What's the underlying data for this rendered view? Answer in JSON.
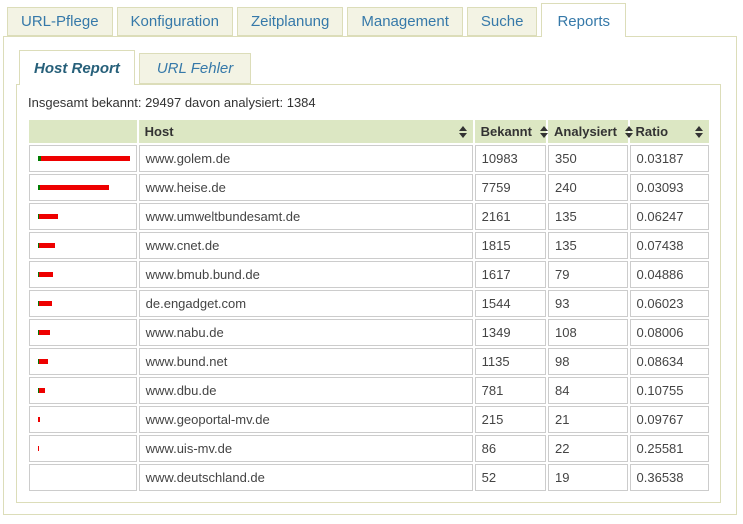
{
  "main_tabs": {
    "items": [
      {
        "label": "URL-Pflege",
        "active": false
      },
      {
        "label": "Konfiguration",
        "active": false
      },
      {
        "label": "Zeitplanung",
        "active": false
      },
      {
        "label": "Management",
        "active": false
      },
      {
        "label": "Suche",
        "active": false
      },
      {
        "label": "Reports",
        "active": true
      }
    ]
  },
  "sub_tabs": {
    "items": [
      {
        "label": "Host Report",
        "active": true
      },
      {
        "label": "URL Fehler",
        "active": false
      }
    ]
  },
  "summary_text": "Insgesamt bekannt: 29497 davon analysiert: 1384",
  "table": {
    "headers": {
      "bar": "",
      "host": "Host",
      "bekannt": "Bekannt",
      "analysiert": "Analysiert",
      "ratio": "Ratio"
    },
    "sort_icon": "unsorted-arrows",
    "rows": [
      {
        "host": "www.golem.de",
        "bekannt": 10983,
        "analysiert": 350,
        "ratio": "0.03187"
      },
      {
        "host": "www.heise.de",
        "bekannt": 7759,
        "analysiert": 240,
        "ratio": "0.03093"
      },
      {
        "host": "www.umweltbundesamt.de",
        "bekannt": 2161,
        "analysiert": 135,
        "ratio": "0.06247"
      },
      {
        "host": "www.cnet.de",
        "bekannt": 1815,
        "analysiert": 135,
        "ratio": "0.07438"
      },
      {
        "host": "www.bmub.bund.de",
        "bekannt": 1617,
        "analysiert": 79,
        "ratio": "0.04886"
      },
      {
        "host": "de.engadget.com",
        "bekannt": 1544,
        "analysiert": 93,
        "ratio": "0.06023"
      },
      {
        "host": "www.nabu.de",
        "bekannt": 1349,
        "analysiert": 108,
        "ratio": "0.08006"
      },
      {
        "host": "www.bund.net",
        "bekannt": 1135,
        "analysiert": 98,
        "ratio": "0.08634"
      },
      {
        "host": "www.dbu.de",
        "bekannt": 781,
        "analysiert": 84,
        "ratio": "0.10755"
      },
      {
        "host": "www.geoportal-mv.de",
        "bekannt": 215,
        "analysiert": 21,
        "ratio": "0.09767"
      },
      {
        "host": "www.uis-mv.de",
        "bekannt": 86,
        "analysiert": 22,
        "ratio": "0.25581"
      },
      {
        "host": "www.deutschland.de",
        "bekannt": 52,
        "analysiert": 19,
        "ratio": "0.36538"
      }
    ]
  },
  "colors": {
    "bar_red": "#ee0000",
    "bar_green": "#007b00",
    "tab_text": "#3679a9",
    "active_subtab_text": "#27607a",
    "header_bg": "#dce7c3",
    "panel_border": "#dcddb9"
  }
}
